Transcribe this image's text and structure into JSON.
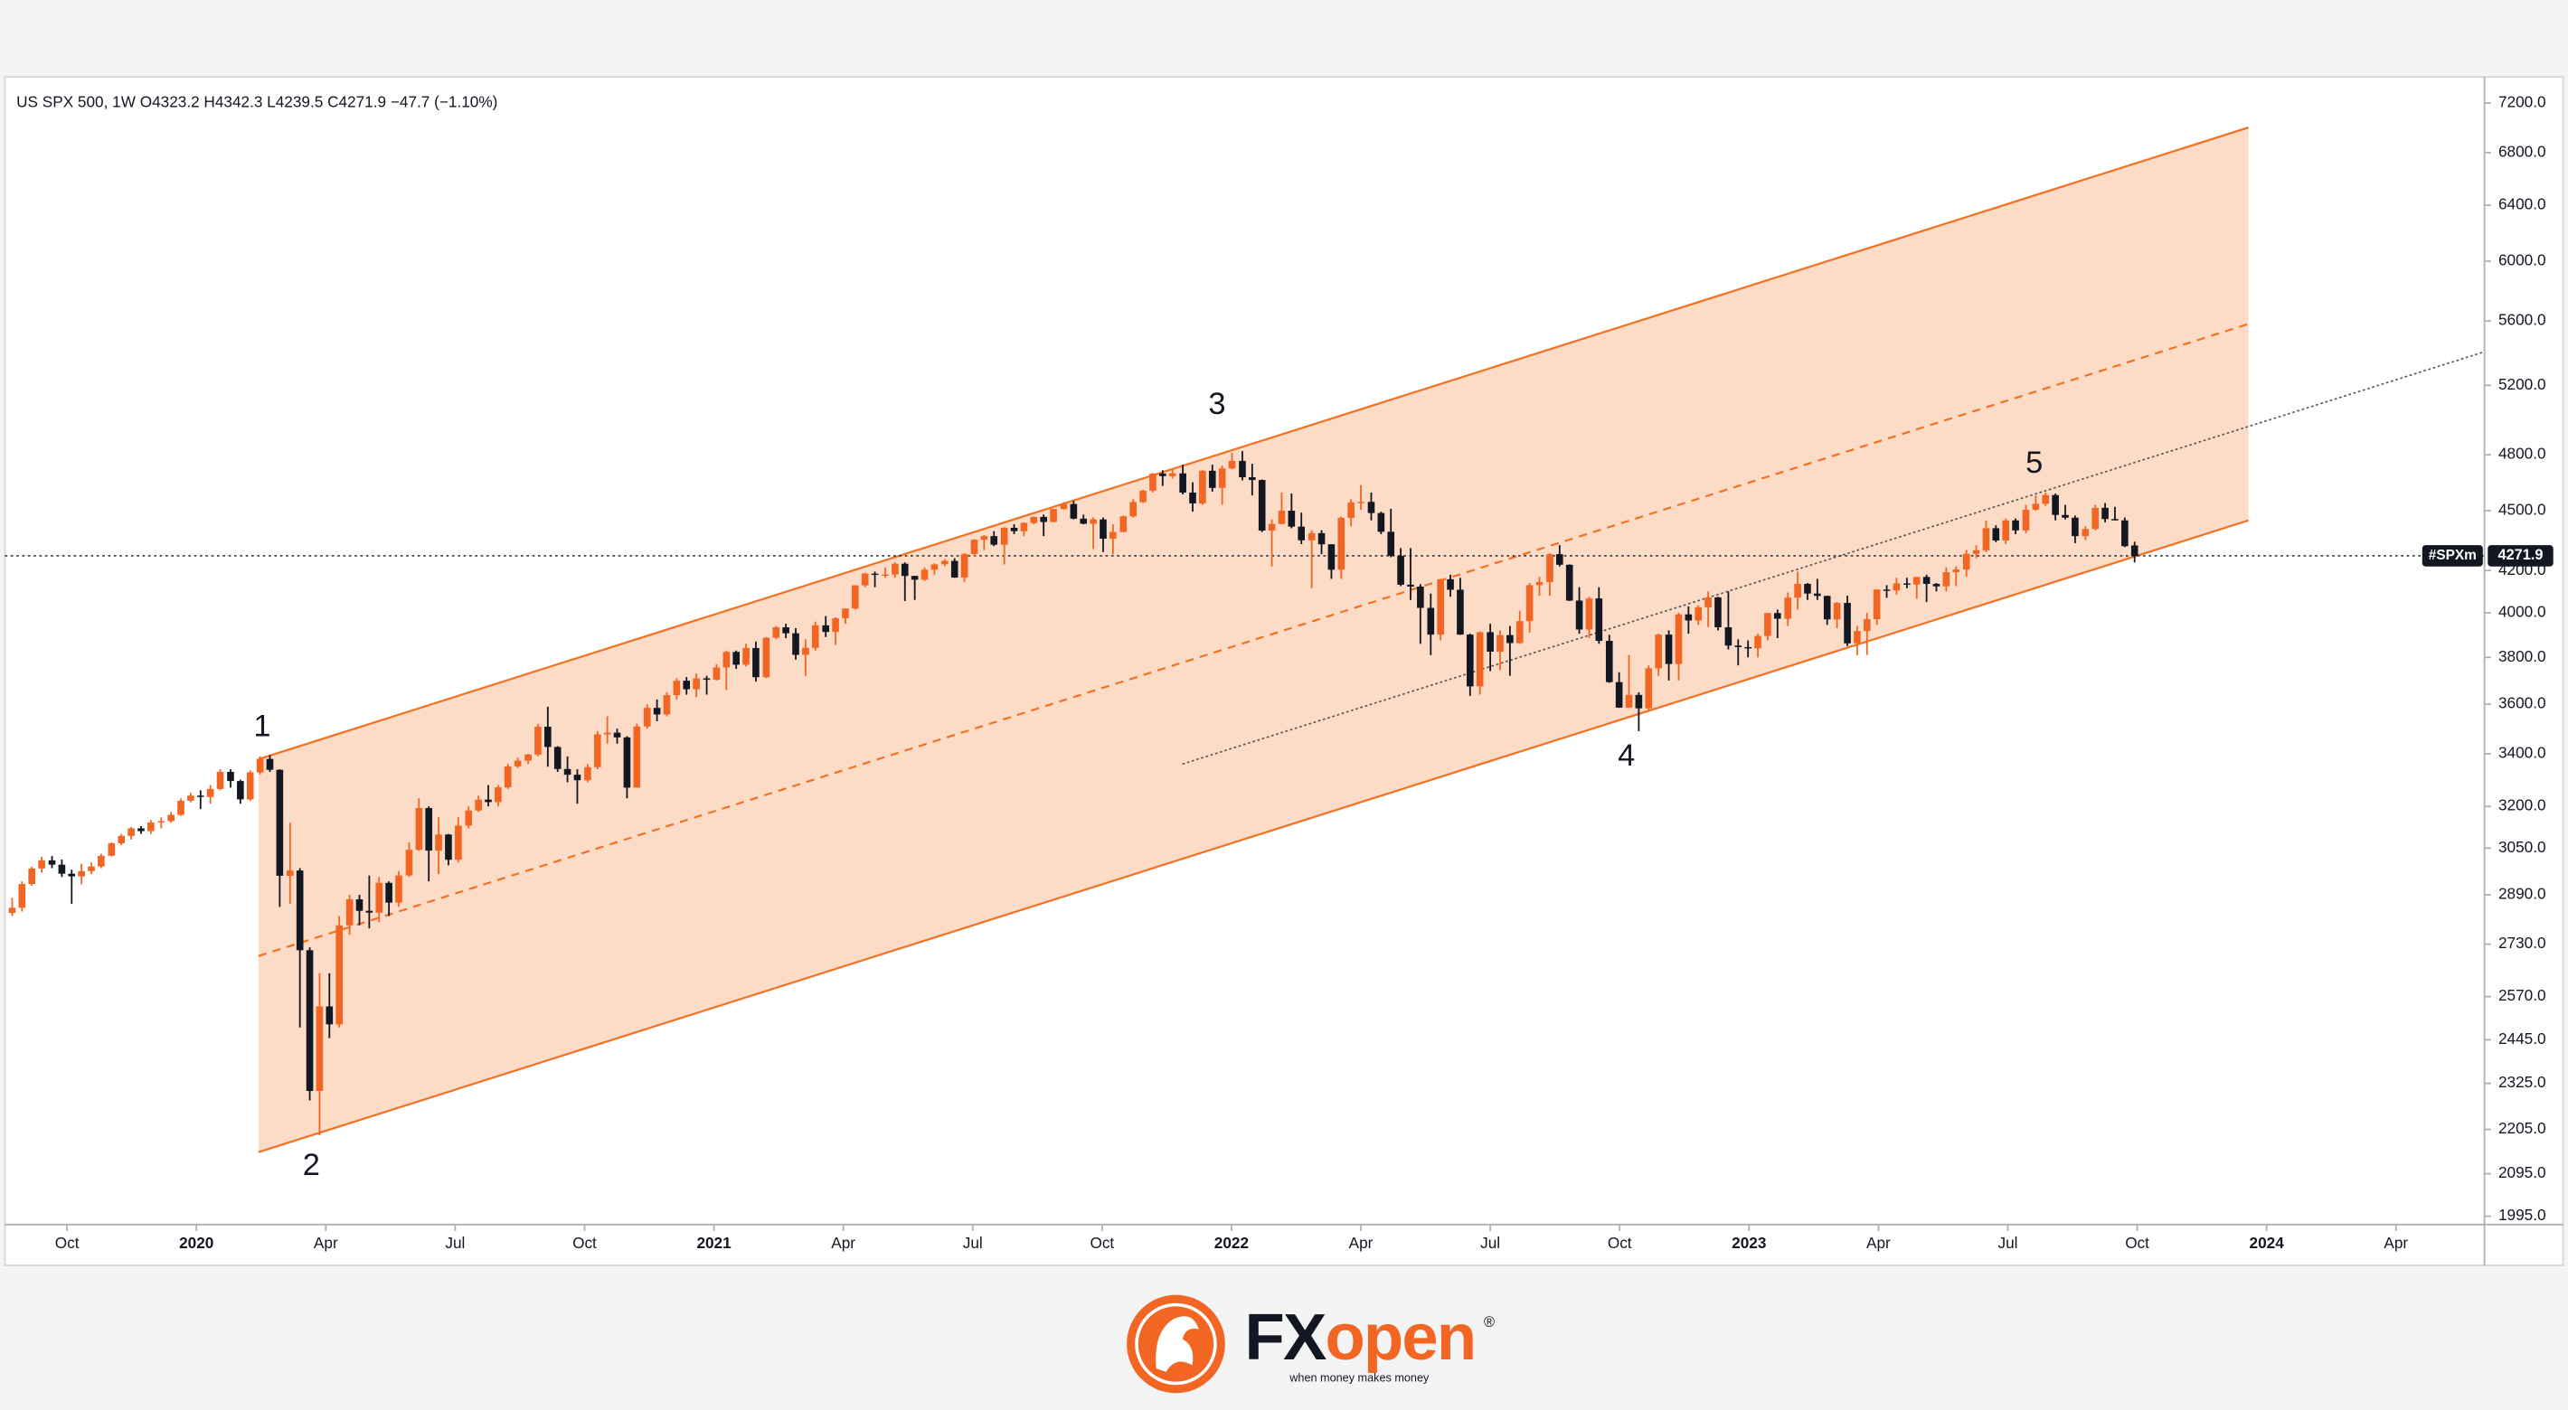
{
  "chart_data": {
    "type": "candlestick",
    "title": "US SPX 500, 1W  O4323.2  H4342.3  L4239.5  C4271.9  −47.7 (−1.10%)",
    "log_scale": true,
    "grid": false,
    "up_color": "#f26522",
    "down_color": "#131722",
    "xlim": [
      2019.63,
      2024.421
    ],
    "ylim": [
      1976,
      7420
    ],
    "xticks": [
      {
        "value": 2019.75,
        "label": "Oct"
      },
      2020,
      {
        "value": 2020.25,
        "label": "Apr"
      },
      {
        "value": 2020.5,
        "label": "Jul"
      },
      {
        "value": 2020.75,
        "label": "Oct"
      },
      2021,
      {
        "value": 2021.25,
        "label": "Apr"
      },
      {
        "value": 2021.5,
        "label": "Jul"
      },
      {
        "value": 2021.75,
        "label": "Oct"
      },
      2022,
      {
        "value": 2022.25,
        "label": "Apr"
      },
      {
        "value": 2022.5,
        "label": "Jul"
      },
      {
        "value": 2022.75,
        "label": "Oct"
      },
      2023,
      {
        "value": 2023.25,
        "label": "Apr"
      },
      {
        "value": 2023.5,
        "label": "Jul"
      },
      {
        "value": 2023.75,
        "label": "Oct"
      },
      2024,
      {
        "value": 2024.25,
        "label": "Apr"
      }
    ],
    "yticks": [
      {
        "value": 1995,
        "label": "1995.0"
      },
      {
        "value": 2095,
        "label": "2095.0"
      },
      {
        "value": 2205,
        "label": "2205.0"
      },
      {
        "value": 2325,
        "label": "2325.0"
      },
      {
        "value": 2445,
        "label": "2445.0"
      },
      {
        "value": 2570,
        "label": "2570.0"
      },
      {
        "value": 2730,
        "label": "2730.0"
      },
      {
        "value": 2890,
        "label": "2890.0"
      },
      {
        "value": 3050,
        "label": "3050.0"
      },
      {
        "value": 3200,
        "label": "3200.0"
      },
      {
        "value": 3400,
        "label": "3400.0"
      },
      {
        "value": 3600,
        "label": "3600.0"
      },
      {
        "value": 3800,
        "label": "3800.0"
      },
      {
        "value": 4000,
        "label": "4000.0"
      },
      {
        "value": 4200,
        "label": "4200.0"
      },
      {
        "value": 4500,
        "label": "4500.0"
      },
      {
        "value": 4800,
        "label": "4800.0"
      },
      {
        "value": 5200,
        "label": "5200.0"
      },
      {
        "value": 5600,
        "label": "5600.0"
      },
      {
        "value": 6000,
        "label": "6000.0"
      },
      {
        "value": 6400,
        "label": "6400.0"
      },
      {
        "value": 6800,
        "label": "6800.0"
      },
      {
        "value": 7200,
        "label": "7200.0"
      }
    ],
    "x": [
      2019.644,
      2019.663,
      2019.682,
      2019.701,
      2019.721,
      2019.74,
      2019.759,
      2019.778,
      2019.797,
      2019.816,
      2019.836,
      2019.855,
      2019.874,
      2019.893,
      2019.912,
      2019.932,
      2019.951,
      2019.97,
      2019.989,
      2020.008,
      2020.027,
      2020.046,
      2020.066,
      2020.085,
      2020.104,
      2020.123,
      2020.142,
      2020.161,
      2020.181,
      2020.2,
      2020.219,
      2020.238,
      2020.257,
      2020.276,
      2020.296,
      2020.315,
      2020.334,
      2020.353,
      2020.372,
      2020.391,
      2020.411,
      2020.43,
      2020.449,
      2020.468,
      2020.487,
      2020.506,
      2020.526,
      2020.545,
      2020.564,
      2020.583,
      2020.602,
      2020.621,
      2020.641,
      2020.66,
      2020.679,
      2020.698,
      2020.717,
      2020.736,
      2020.756,
      2020.775,
      2020.794,
      2020.813,
      2020.832,
      2020.851,
      2020.871,
      2020.89,
      2020.909,
      2020.928,
      2020.947,
      2020.966,
      2020.986,
      2021.005,
      2021.024,
      2021.043,
      2021.062,
      2021.081,
      2021.101,
      2021.12,
      2021.139,
      2021.158,
      2021.177,
      2021.196,
      2021.216,
      2021.235,
      2021.254,
      2021.273,
      2021.292,
      2021.311,
      2021.331,
      2021.35,
      2021.369,
      2021.388,
      2021.407,
      2021.426,
      2021.446,
      2021.465,
      2021.484,
      2021.503,
      2021.522,
      2021.541,
      2021.561,
      2021.58,
      2021.599,
      2021.618,
      2021.637,
      2021.656,
      2021.676,
      2021.695,
      2021.714,
      2021.733,
      2021.752,
      2021.771,
      2021.791,
      2021.81,
      2021.829,
      2021.848,
      2021.867,
      2021.886,
      2021.906,
      2021.925,
      2021.944,
      2021.963,
      2021.982,
      2022.001,
      2022.021,
      2022.04,
      2022.059,
      2022.078,
      2022.097,
      2022.116,
      2022.135,
      2022.155,
      2022.174,
      2022.193,
      2022.212,
      2022.231,
      2022.25,
      2022.27,
      2022.289,
      2022.308,
      2022.327,
      2022.346,
      2022.365,
      2022.385,
      2022.404,
      2022.423,
      2022.442,
      2022.461,
      2022.48,
      2022.5,
      2022.519,
      2022.538,
      2022.557,
      2022.576,
      2022.595,
      2022.615,
      2022.634,
      2022.653,
      2022.672,
      2022.691,
      2022.71,
      2022.73,
      2022.749,
      2022.768,
      2022.787,
      2022.806,
      2022.825,
      2022.845,
      2022.864,
      2022.883,
      2022.902,
      2022.921,
      2022.94,
      2022.96,
      2022.979,
      2022.998,
      2023.017,
      2023.036,
      2023.055,
      2023.075,
      2023.094,
      2023.113,
      2023.132,
      2023.151,
      2023.17,
      2023.19,
      2023.209,
      2023.228,
      2023.247,
      2023.266,
      2023.285,
      2023.305,
      2023.324,
      2023.343,
      2023.362,
      2023.381,
      2023.4,
      2023.42,
      2023.439,
      2023.458,
      2023.477,
      2023.496,
      2023.515,
      2023.535,
      2023.554,
      2023.573,
      2023.592,
      2023.611,
      2023.63,
      2023.65,
      2023.669,
      2023.688,
      2023.707,
      2023.726,
      2023.745
    ],
    "open": [
      2830,
      2847,
      2926,
      2979,
      3007,
      2992,
      2961,
      2952,
      2970,
      2986,
      3023,
      3067,
      3093,
      3120,
      3110,
      3141,
      3146,
      3169,
      3221,
      3240,
      3235,
      3265,
      3330,
      3295,
      3226,
      3328,
      3380,
      3338,
      2954,
      2972,
      2711,
      2305,
      2541,
      2489,
      2790,
      2875,
      2837,
      2831,
      2930,
      2864,
      2955,
      3044,
      3194,
      3041,
      3098,
      3009,
      3130,
      3185,
      3225,
      3216,
      3271,
      3351,
      3373,
      3397,
      3508,
      3427,
      3341,
      3319,
      3298,
      3348,
      3477,
      3484,
      3465,
      3270,
      3509,
      3585,
      3558,
      3638,
      3699,
      3663,
      3709,
      3703,
      3756,
      3824,
      3768,
      3841,
      3714,
      3887,
      3934,
      3907,
      3811,
      3842,
      3943,
      3913,
      3975,
      4020,
      4129,
      4185,
      4180,
      4181,
      4233,
      4174,
      4156,
      4204,
      4230,
      4247,
      4166,
      4281,
      4352,
      4370,
      4327,
      4412,
      4395,
      4437,
      4468,
      4442,
      4509,
      4535,
      4459,
      4433,
      4455,
      4357,
      4391,
      4471,
      4545,
      4605,
      4697,
      4683,
      4698,
      4595,
      4538,
      4712,
      4620,
      4725,
      4766,
      4677,
      4662,
      4398,
      4432,
      4500,
      4418,
      4349,
      4385,
      4329,
      4204,
      4463,
      4543,
      4546,
      4488,
      4392,
      4272,
      4132,
      4123,
      4023,
      3901,
      4158,
      4108,
      3901,
      3675,
      3912,
      3825,
      3899,
      3863,
      3962,
      4130,
      4145,
      4280,
      4228,
      4057,
      3924,
      4067,
      3873,
      3693,
      3586,
      3639,
      3583,
      3752,
      3901,
      3771,
      3993,
      3965,
      4026,
      4072,
      3934,
      3852,
      3845,
      3840,
      3895,
      3999,
      3973,
      4071,
      4136,
      4090,
      4079,
      3970,
      4046,
      3862,
      3917,
      3971,
      4109,
      4105,
      4138,
      4133,
      4169,
      4136,
      4124,
      4192,
      4205,
      4282,
      4299,
      4410,
      4348,
      4450,
      4399,
      4505,
      4536,
      4582,
      4478,
      4464,
      4370,
      4406,
      4515,
      4457,
      4450,
      4323.2
    ],
    "high": [
      2880,
      2935,
      2985,
      3020,
      3022,
      3010,
      2975,
      2995,
      3000,
      3030,
      3070,
      3100,
      3125,
      3128,
      3150,
      3160,
      3180,
      3230,
      3250,
      3260,
      3280,
      3340,
      3340,
      3300,
      3335,
      3390,
      3395,
      3340,
      3140,
      2980,
      2720,
      2640,
      2640,
      2820,
      2890,
      2890,
      2955,
      2950,
      2935,
      2970,
      3070,
      3230,
      3200,
      3160,
      3100,
      3160,
      3200,
      3240,
      3280,
      3280,
      3360,
      3385,
      3400,
      3520,
      3590,
      3430,
      3390,
      3340,
      3360,
      3490,
      3550,
      3500,
      3470,
      3520,
      3600,
      3620,
      3650,
      3710,
      3715,
      3730,
      3720,
      3770,
      3830,
      3830,
      3860,
      3870,
      3890,
      3940,
      3950,
      3930,
      3880,
      3960,
      3985,
      3980,
      4020,
      4130,
      4190,
      4195,
      4215,
      4240,
      4240,
      4175,
      4215,
      4235,
      4255,
      4260,
      4285,
      4355,
      4375,
      4395,
      4415,
      4430,
      4440,
      4470,
      4480,
      4510,
      4545,
      4550,
      4480,
      4465,
      4465,
      4430,
      4475,
      4560,
      4610,
      4700,
      4715,
      4720,
      4745,
      4650,
      4715,
      4745,
      4740,
      4810,
      4820,
      4750,
      4665,
      4455,
      4595,
      4590,
      4490,
      4400,
      4400,
      4330,
      4470,
      4560,
      4635,
      4595,
      4495,
      4510,
      4310,
      4310,
      4135,
      4090,
      4160,
      4180,
      4165,
      3905,
      3915,
      3950,
      3920,
      3940,
      4010,
      4140,
      4170,
      4285,
      4325,
      4230,
      4120,
      4075,
      4120,
      3900,
      3735,
      3810,
      3650,
      3765,
      3905,
      3920,
      4000,
      4030,
      4035,
      4100,
      4075,
      4100,
      3880,
      3875,
      3905,
      4000,
      4015,
      4095,
      4195,
      4140,
      4160,
      4080,
      4050,
      4080,
      3940,
      4000,
      4110,
      4130,
      4165,
      4165,
      4170,
      4180,
      4140,
      4215,
      4220,
      4300,
      4325,
      4450,
      4425,
      4460,
      4460,
      4530,
      4580,
      4595,
      4590,
      4530,
      4475,
      4420,
      4530,
      4540,
      4520,
      4465,
      4342.3
    ],
    "low": [
      2820,
      2835,
      2920,
      2965,
      2980,
      2950,
      2860,
      2925,
      2960,
      2980,
      3020,
      3060,
      3080,
      3100,
      3100,
      3120,
      3140,
      3165,
      3215,
      3190,
      3210,
      3260,
      3270,
      3210,
      3220,
      3320,
      3330,
      2850,
      2860,
      2480,
      2280,
      2190,
      2450,
      2480,
      2760,
      2790,
      2780,
      2800,
      2820,
      2850,
      2950,
      3040,
      2935,
      2960,
      2990,
      3000,
      3120,
      3180,
      3200,
      3200,
      3265,
      3345,
      3360,
      3390,
      3350,
      3330,
      3290,
      3210,
      3290,
      3340,
      3440,
      3440,
      3230,
      3270,
      3500,
      3530,
      3550,
      3620,
      3640,
      3630,
      3640,
      3700,
      3660,
      3750,
      3760,
      3695,
      3710,
      3880,
      3885,
      3790,
      3720,
      3830,
      3890,
      3855,
      3950,
      4015,
      4120,
      4120,
      4165,
      4165,
      4055,
      4060,
      4150,
      4180,
      4220,
      4165,
      4145,
      4270,
      4300,
      4320,
      4230,
      4380,
      4370,
      4430,
      4370,
      4440,
      4505,
      4455,
      4430,
      4305,
      4290,
      4280,
      4390,
      4465,
      4540,
      4595,
      4630,
      4670,
      4585,
      4495,
      4530,
      4600,
      4530,
      4720,
      4660,
      4580,
      4390,
      4220,
      4430,
      4410,
      4330,
      4115,
      4280,
      4160,
      4160,
      4420,
      4505,
      4450,
      4380,
      4265,
      4125,
      4060,
      3860,
      3810,
      3875,
      4075,
      3900,
      3635,
      3640,
      3740,
      3745,
      3720,
      3860,
      3910,
      4080,
      4080,
      4220,
      4055,
      3905,
      3885,
      3860,
      3690,
      3585,
      3585,
      3490,
      3570,
      3720,
      3700,
      3700,
      3905,
      3945,
      3935,
      3920,
      3835,
      3765,
      3800,
      3800,
      3875,
      3885,
      3940,
      4015,
      4060,
      4060,
      3945,
      3930,
      3850,
      3810,
      3810,
      3945,
      4070,
      4085,
      4115,
      4065,
      4050,
      4100,
      4100,
      4125,
      4170,
      4260,
      4290,
      4340,
      4330,
      4380,
      4385,
      4500,
      4525,
      4450,
      4455,
      4335,
      4350,
      4400,
      4440,
      4450,
      4315,
      4239.5
    ],
    "close": [
      2847,
      2926,
      2979,
      3007,
      2992,
      2961,
      2952,
      2970,
      2986,
      3023,
      3067,
      3093,
      3120,
      3110,
      3141,
      3146,
      3169,
      3221,
      3240,
      3235,
      3265,
      3330,
      3295,
      3226,
      3328,
      3380,
      3338,
      2954,
      2972,
      2711,
      2305,
      2541,
      2489,
      2790,
      2875,
      2837,
      2831,
      2930,
      2864,
      2955,
      3044,
      3194,
      3041,
      3098,
      3009,
      3130,
      3185,
      3225,
      3216,
      3271,
      3351,
      3373,
      3397,
      3508,
      3427,
      3341,
      3319,
      3298,
      3348,
      3477,
      3484,
      3465,
      3270,
      3509,
      3585,
      3558,
      3638,
      3699,
      3663,
      3709,
      3703,
      3756,
      3824,
      3768,
      3841,
      3714,
      3887,
      3934,
      3907,
      3811,
      3842,
      3943,
      3913,
      3975,
      4020,
      4129,
      4185,
      4180,
      4181,
      4233,
      4174,
      4156,
      4204,
      4230,
      4247,
      4166,
      4281,
      4352,
      4370,
      4327,
      4412,
      4395,
      4437,
      4468,
      4442,
      4509,
      4535,
      4459,
      4433,
      4455,
      4357,
      4391,
      4471,
      4545,
      4605,
      4697,
      4683,
      4698,
      4595,
      4538,
      4712,
      4620,
      4725,
      4766,
      4677,
      4662,
      4398,
      4432,
      4500,
      4418,
      4349,
      4385,
      4329,
      4204,
      4463,
      4543,
      4546,
      4488,
      4392,
      4272,
      4132,
      4123,
      4023,
      3901,
      4158,
      4108,
      3901,
      3675,
      3912,
      3825,
      3899,
      3863,
      3962,
      4130,
      4145,
      4280,
      4228,
      4057,
      3924,
      4067,
      3873,
      3693,
      3586,
      3639,
      3583,
      3752,
      3901,
      3771,
      3993,
      3965,
      4026,
      4072,
      3934,
      3852,
      3845,
      3840,
      3895,
      3999,
      3973,
      4071,
      4136,
      4090,
      4079,
      3970,
      4046,
      3862,
      3917,
      3971,
      4109,
      4105,
      4138,
      4133,
      4169,
      4136,
      4124,
      4192,
      4205,
      4282,
      4299,
      4410,
      4348,
      4450,
      4399,
      4505,
      4536,
      4582,
      4478,
      4464,
      4370,
      4406,
      4515,
      4457,
      4450,
      4319.6,
      4271.9
    ],
    "channel": {
      "color": "#f37021",
      "upper": {
        "x": [
          2020.12,
          2023.965
        ],
        "y": [
          3379,
          7000
        ]
      },
      "middle": {
        "x": [
          2020.12,
          2023.965
        ],
        "y": [
          2693,
          5581
        ]
      },
      "lower": {
        "x": [
          2020.12,
          2023.965
        ],
        "y": [
          2148,
          4450
        ]
      }
    },
    "trendline": {
      "x": [
        2021.905,
        2024.421
      ],
      "y": [
        3360,
        5405
      ]
    },
    "last_price": 4271.9,
    "last_price_label": "#SPXm",
    "annotations": [
      {
        "text": "1",
        "x": 2020.127,
        "y": 3502
      },
      {
        "text": "2",
        "x": 2020.222,
        "y": 2112
      },
      {
        "text": "3",
        "x": 2021.972,
        "y": 5078
      },
      {
        "text": "4",
        "x": 2022.763,
        "y": 3386
      },
      {
        "text": "5",
        "x": 2023.551,
        "y": 4745
      }
    ]
  },
  "logo": {
    "brand_prefix": "FX",
    "brand_suffix": "open",
    "registered": "®",
    "tagline": "when money makes money"
  }
}
